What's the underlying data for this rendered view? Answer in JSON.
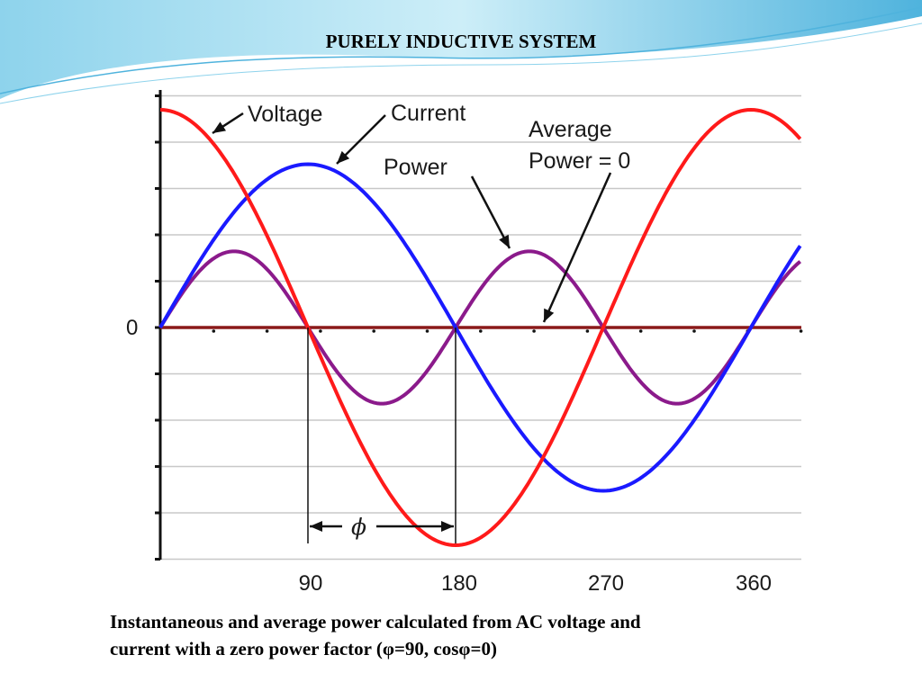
{
  "slide": {
    "title": "PURELY INDUCTIVE SYSTEM",
    "caption_line1": "Instantaneous and average power calculated from AC voltage and",
    "caption_line2": "current with a zero power factor (φ=90, cosφ=0)"
  },
  "colors": {
    "voltage": "#ff1a1a",
    "current": "#1a1aff",
    "power": "#8b1a8b",
    "zero_line": "#8b1a1a",
    "grid": "#c8c8c8",
    "axis": "#111111",
    "banner_light": "#cdeef8",
    "banner_mid": "#8ed3ec",
    "banner_dark": "#4fb3dd"
  },
  "chart_data": {
    "type": "line",
    "x": [
      0,
      15,
      30,
      45,
      60,
      75,
      90,
      105,
      120,
      135,
      150,
      165,
      180,
      195,
      210,
      225,
      240,
      255,
      270,
      285,
      300,
      315,
      330,
      345,
      360,
      375,
      390
    ],
    "xlim": [
      0,
      390
    ],
    "ylim": [
      -1,
      1
    ],
    "x_ticks": [
      90,
      180,
      270,
      360
    ],
    "x_tick_labels": [
      "90",
      "180",
      "270",
      "360"
    ],
    "y_zero_label": "0",
    "series": [
      {
        "name": "Voltage",
        "values": [
          1,
          0.966,
          0.866,
          0.707,
          0.5,
          0.259,
          0,
          -0.259,
          -0.5,
          -0.707,
          -0.866,
          -0.966,
          -1,
          -0.966,
          -0.866,
          -0.707,
          -0.5,
          -0.259,
          0,
          0.259,
          0.5,
          0.707,
          0.866,
          0.966,
          1,
          0.966,
          0.866
        ]
      },
      {
        "name": "Current",
        "values": [
          0,
          0.194,
          0.375,
          0.53,
          0.65,
          0.725,
          0.75,
          0.725,
          0.65,
          0.53,
          0.375,
          0.194,
          0,
          -0.194,
          -0.375,
          -0.53,
          -0.65,
          -0.725,
          -0.75,
          -0.725,
          -0.65,
          -0.53,
          -0.375,
          -0.194,
          0,
          0.194,
          0.375
        ]
      },
      {
        "name": "Power",
        "values": [
          0,
          0.17,
          0.3,
          0.35,
          0.3,
          0.17,
          0,
          -0.17,
          -0.3,
          -0.35,
          -0.3,
          -0.17,
          0,
          0.17,
          0.3,
          0.35,
          0.3,
          0.17,
          0,
          -0.17,
          -0.3,
          -0.35,
          -0.3,
          -0.17,
          0,
          0.17,
          0.3
        ]
      },
      {
        "name": "Average Power = 0",
        "values": [
          0,
          0,
          0,
          0,
          0,
          0,
          0,
          0,
          0,
          0,
          0,
          0,
          0,
          0,
          0,
          0,
          0,
          0,
          0,
          0,
          0,
          0,
          0,
          0,
          0,
          0,
          0
        ]
      }
    ],
    "annotations": [
      "Voltage",
      "Current",
      "Power",
      "Average",
      "Power = 0",
      "ϕ"
    ],
    "phase_shift_marker": {
      "from_x": 90,
      "to_x": 180
    },
    "grid": true
  }
}
